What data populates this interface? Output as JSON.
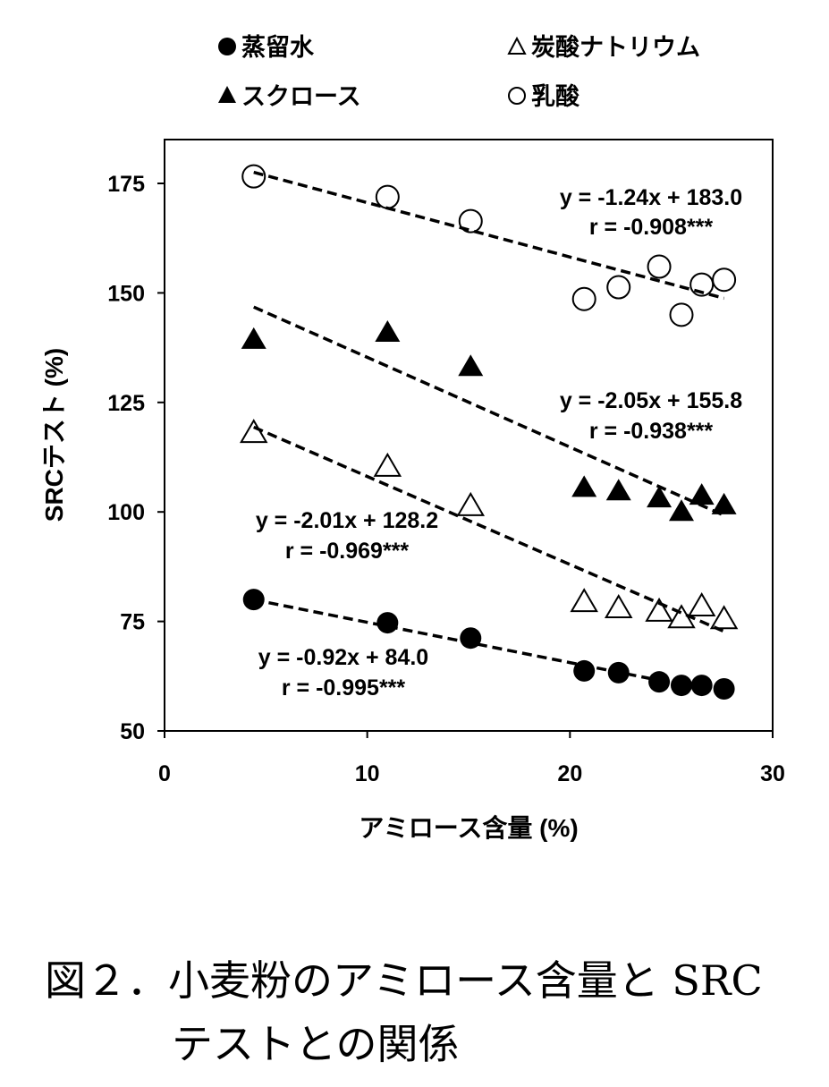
{
  "chart_data": {
    "type": "scatter",
    "title": "",
    "xlabel": "アミロース含量 (%)",
    "ylabel": "SRCテスト (%)",
    "xlim": [
      0,
      30
    ],
    "ylim": [
      50,
      175
    ],
    "xticks": [
      0,
      10,
      20,
      30
    ],
    "yticks": [
      50,
      75,
      100,
      125,
      150,
      175
    ],
    "grid": false,
    "legend_position": "top",
    "x": [
      4.4,
      11.0,
      15.1,
      20.7,
      22.4,
      24.4,
      25.5,
      26.5,
      27.6
    ],
    "series": [
      {
        "name": "蒸留水",
        "marker": "filled-circle",
        "values": [
          80,
          74.7,
          71.2,
          63.7,
          63.3,
          61.2,
          60.4,
          60.4,
          59.6
        ],
        "fit": {
          "slope": -0.92,
          "intercept": 84.0,
          "equation": "y = -0.92x + 84.0",
          "r": "r = -0.995***"
        }
      },
      {
        "name": "炭酸ナトリウム",
        "marker": "open-triangle",
        "values": [
          118,
          110.3,
          101.3,
          79.4,
          78,
          77.2,
          75.7,
          78.4,
          75.5
        ],
        "fit": {
          "slope": -2.01,
          "intercept": 128.2,
          "equation": "y = -2.01x + 128.2",
          "r": "r = -0.969***"
        }
      },
      {
        "name": "スクロース",
        "marker": "filled-triangle",
        "values": [
          139.3,
          140.9,
          133.1,
          105.5,
          104.7,
          103.1,
          100,
          103.7,
          101.5
        ],
        "fit": {
          "slope": -2.05,
          "intercept": 155.8,
          "equation": "y = -2.05x + 155.8",
          "r": "r = -0.938***"
        }
      },
      {
        "name": "乳酸",
        "marker": "open-circle",
        "values": [
          176.6,
          171.9,
          166.4,
          148.6,
          151.3,
          156,
          145,
          151.9,
          153
        ],
        "fit": {
          "slope": -1.24,
          "intercept": 183.0,
          "equation": "y = -1.24x + 183.0",
          "r": "r = -0.908***"
        }
      }
    ]
  },
  "caption": {
    "line1": "図２．小麦粉のアミロース含量と SRC",
    "line2": "テストとの関係"
  }
}
